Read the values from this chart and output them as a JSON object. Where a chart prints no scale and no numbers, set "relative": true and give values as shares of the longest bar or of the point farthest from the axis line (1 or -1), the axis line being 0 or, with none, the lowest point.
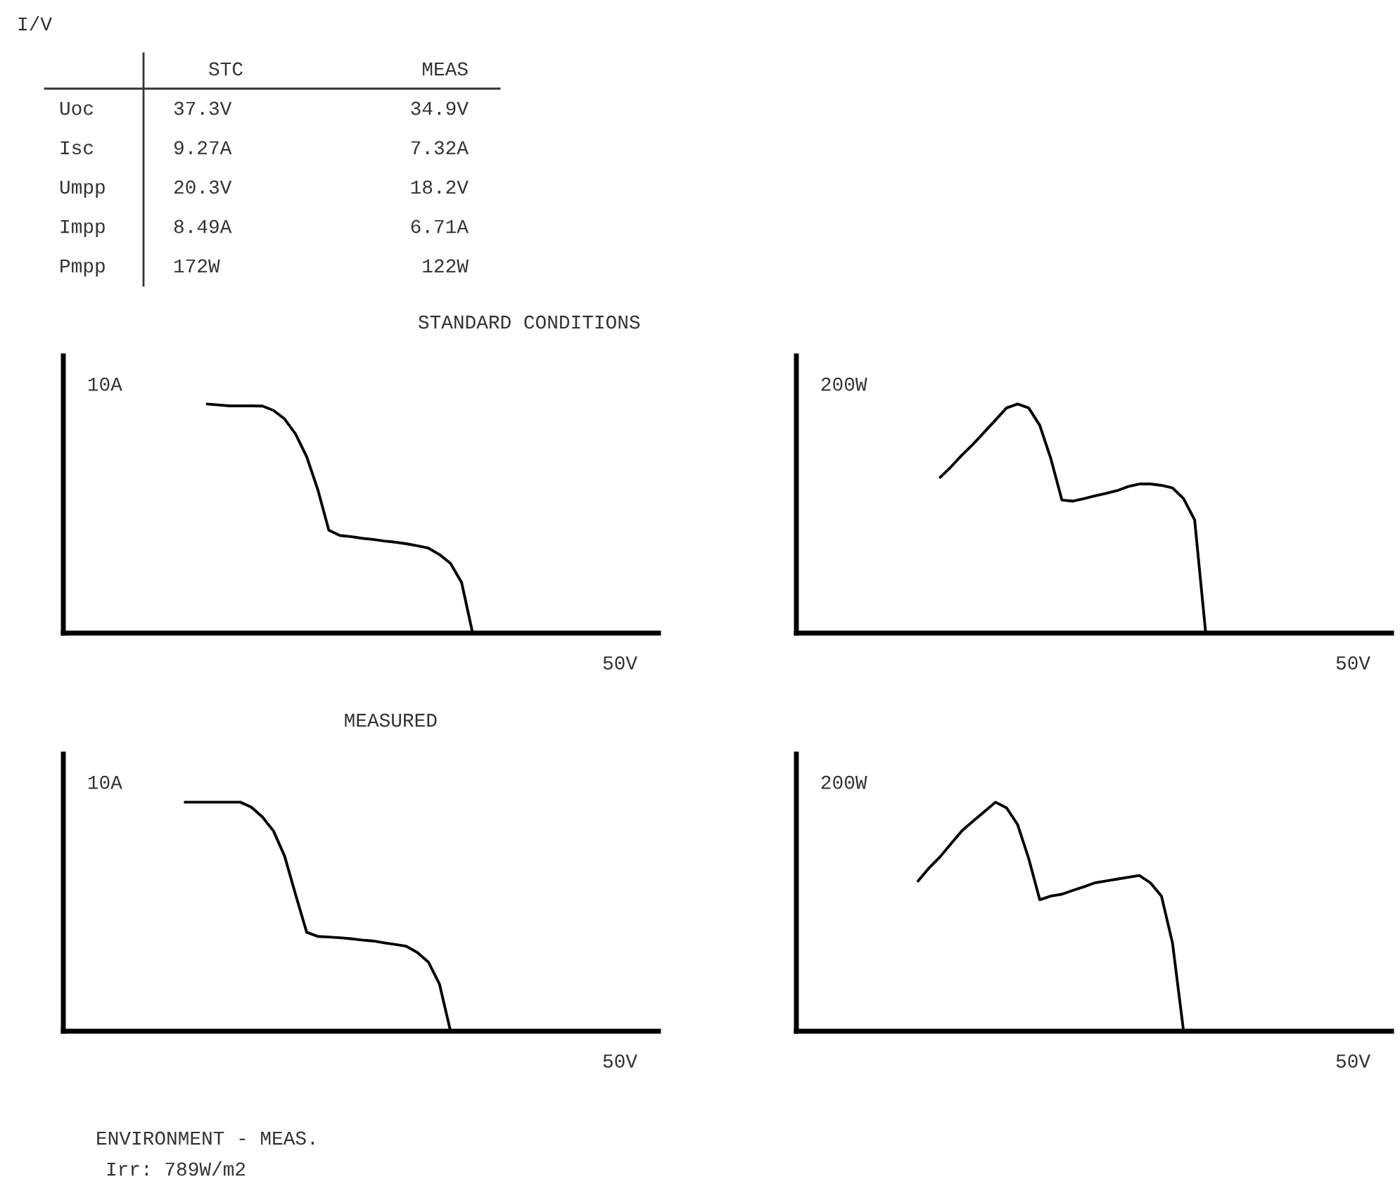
{
  "chart_data": [
    {
      "type": "other",
      "title": "I/V",
      "categories": [
        "STC",
        "MEAS"
      ],
      "y_categories": [
        "Uoc",
        "Isc",
        "Umpp",
        "Impp",
        "Pmpp"
      ],
      "cell_labels": [
        [
          "37.3V",
          "34.9V"
        ],
        [
          "9.27A",
          "7.32A"
        ],
        [
          "20.3V",
          "18.2V"
        ],
        [
          "8.49A",
          "6.71A"
        ],
        [
          "172W",
          "122W"
        ]
      ]
    },
    {
      "type": "line",
      "title": "STANDARD CONDITIONS",
      "color": "#000000",
      "relative": true,
      "annotations": [
        "10A",
        "50V"
      ],
      "categories": [
        null,
        null,
        null,
        null,
        null,
        null,
        null,
        null,
        null,
        null,
        null,
        null,
        null,
        null,
        null,
        null,
        null,
        null,
        null,
        null,
        null,
        null,
        null,
        null,
        null,
        null,
        null,
        null,
        null,
        null,
        null,
        null,
        null,
        null,
        null,
        null,
        null,
        null,
        null,
        null,
        null,
        null,
        null,
        null,
        null,
        null,
        null,
        null,
        null,
        null,
        null,
        null,
        null,
        null
      ],
      "values": [
        null,
        null,
        null,
        null,
        null,
        null,
        null,
        null,
        null,
        null,
        null,
        null,
        null,
        1,
        0.996,
        0.992,
        0.992,
        0.992,
        0.991,
        0.972,
        0.935,
        0.869,
        0.77,
        0.627,
        0.449,
        0.426,
        0.421,
        0.414,
        0.409,
        0.402,
        0.397,
        0.39,
        0.381,
        0.371,
        0.343,
        0.304,
        0.221,
        0,
        null,
        null,
        null,
        null,
        null,
        null,
        null,
        null,
        null,
        null,
        null,
        null,
        null,
        null,
        null,
        null
      ]
    },
    {
      "type": "line",
      "color": "#000000",
      "relative": true,
      "annotations": [
        "200W",
        "50V"
      ],
      "categories": [
        null,
        null,
        null,
        null,
        null,
        null,
        null,
        null,
        null,
        null,
        null,
        null,
        null,
        null,
        null,
        null,
        null,
        null,
        null,
        null,
        null,
        null,
        null,
        null,
        null,
        null,
        null,
        null,
        null,
        null,
        null,
        null,
        null,
        null,
        null,
        null,
        null,
        null,
        null,
        null,
        null,
        null,
        null,
        null,
        null,
        null,
        null,
        null,
        null,
        null,
        null,
        null,
        null,
        null
      ],
      "values": [
        null,
        null,
        null,
        null,
        null,
        null,
        null,
        null,
        null,
        null,
        null,
        null,
        null,
        0.68,
        0.727,
        0.779,
        0.826,
        0.878,
        0.93,
        0.983,
        1,
        0.983,
        0.907,
        0.762,
        0.581,
        0.576,
        0.587,
        0.599,
        0.61,
        0.622,
        0.64,
        0.651,
        0.651,
        0.645,
        0.634,
        0.587,
        0.494,
        0,
        null,
        null,
        null,
        null,
        null,
        null,
        null,
        null,
        null,
        null,
        null,
        null,
        null,
        null,
        null,
        null
      ]
    },
    {
      "type": "line",
      "title": "MEASURED",
      "color": "#000000",
      "relative": true,
      "annotations": [
        "10A",
        "50V"
      ],
      "categories": [
        null,
        null,
        null,
        null,
        null,
        null,
        null,
        null,
        null,
        null,
        null,
        null,
        null,
        null,
        null,
        null,
        null,
        null,
        null,
        null,
        null,
        null,
        null,
        null,
        null,
        null,
        null,
        null,
        null,
        null,
        null,
        null,
        null,
        null,
        null,
        null,
        null,
        null,
        null,
        null,
        null,
        null,
        null,
        null,
        null,
        null,
        null,
        null,
        null,
        null,
        null,
        null,
        null,
        null
      ],
      "values": [
        null,
        null,
        null,
        null,
        null,
        null,
        null,
        null,
        null,
        null,
        null,
        1,
        1,
        1,
        1,
        1,
        1,
        0.978,
        0.935,
        0.874,
        0.765,
        0.596,
        0.432,
        0.414,
        0.411,
        0.408,
        0.404,
        0.398,
        0.394,
        0.386,
        0.379,
        0.371,
        0.344,
        0.302,
        0.206,
        0,
        null,
        null,
        null,
        null,
        null,
        null,
        null,
        null,
        null,
        null,
        null,
        null,
        null,
        null,
        null,
        null,
        null,
        null
      ]
    },
    {
      "type": "line",
      "color": "#000000",
      "relative": true,
      "annotations": [
        "200W",
        "50V"
      ],
      "categories": [
        null,
        null,
        null,
        null,
        null,
        null,
        null,
        null,
        null,
        null,
        null,
        null,
        null,
        null,
        null,
        null,
        null,
        null,
        null,
        null,
        null,
        null,
        null,
        null,
        null,
        null,
        null,
        null,
        null,
        null,
        null,
        null,
        null,
        null,
        null,
        null,
        null,
        null,
        null,
        null,
        null,
        null,
        null,
        null,
        null,
        null,
        null,
        null,
        null,
        null,
        null,
        null,
        null,
        null
      ],
      "values": [
        null,
        null,
        null,
        null,
        null,
        null,
        null,
        null,
        null,
        null,
        null,
        0.656,
        0.713,
        0.762,
        0.82,
        0.877,
        0.918,
        0.959,
        1,
        0.975,
        0.902,
        0.754,
        0.574,
        0.59,
        0.598,
        0.615,
        0.631,
        0.648,
        0.656,
        0.664,
        0.672,
        0.68,
        0.648,
        0.59,
        0.385,
        0,
        null,
        null,
        null,
        null,
        null,
        null,
        null,
        null,
        null,
        null,
        null,
        null,
        null,
        null,
        null,
        null,
        null,
        null
      ]
    },
    {
      "type": "other",
      "annotations": [
        "ENVIRONMENT - MEAS.",
        "Irr: 789W/m2"
      ]
    }
  ]
}
